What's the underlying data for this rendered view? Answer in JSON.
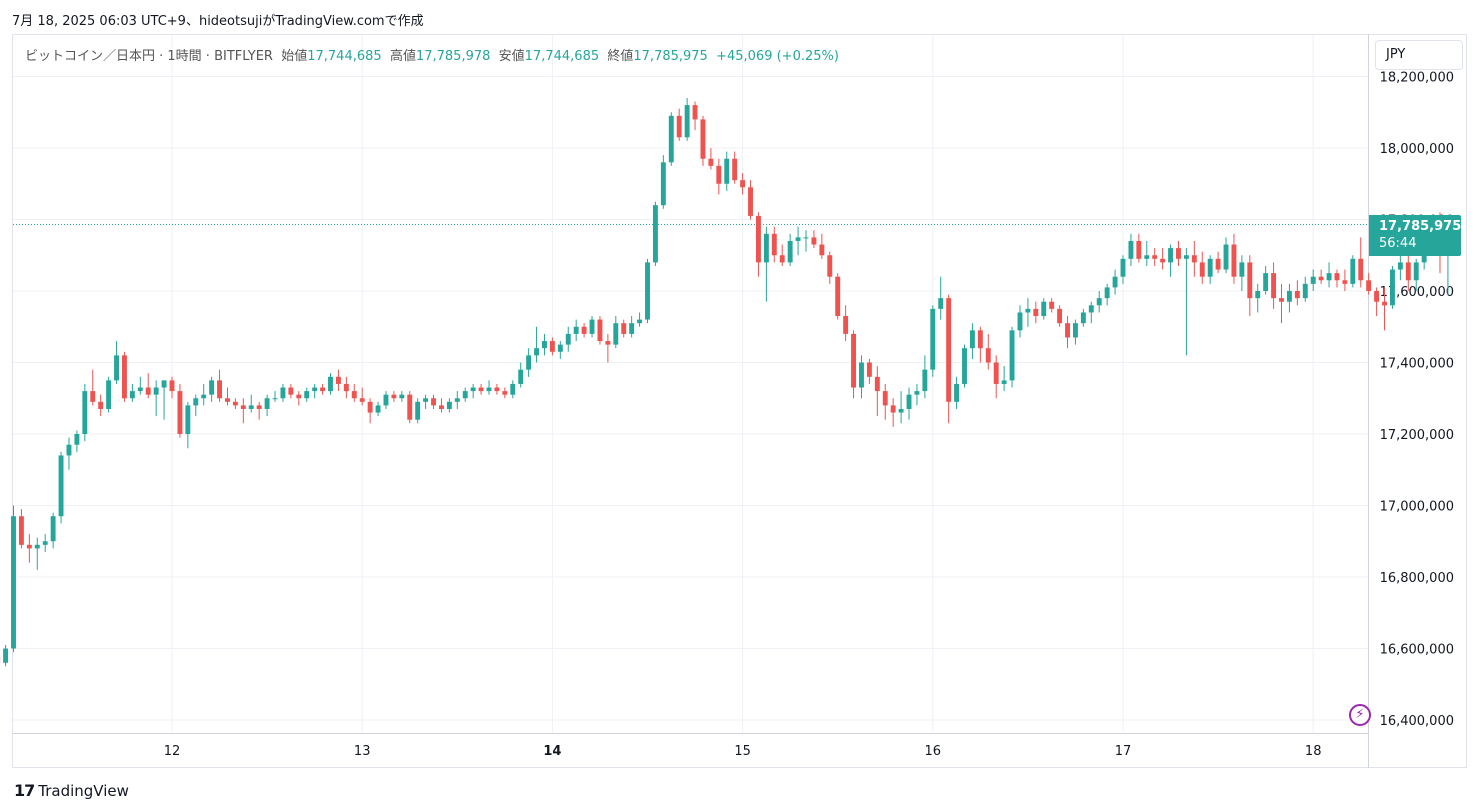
{
  "caption": "7月 18, 2025 06:03 UTC+9、hideotsujiがTradingView.comで作成",
  "legend": {
    "symbol": "ビットコイン／日本円 · 1時間 · BITFLYER",
    "open_label": "始値",
    "open": "17,744,685",
    "high_label": "高値",
    "high": "17,785,978",
    "low_label": "安値",
    "low": "17,744,685",
    "close_label": "終値",
    "close": "17,785,975",
    "change": "+45,069 (+0.25%)"
  },
  "currency": "JPY",
  "last_price": {
    "price": "17,785,975",
    "countdown": "56:44"
  },
  "brand": "TradingView",
  "colors": {
    "up": "#26a69a",
    "down": "#ef5350",
    "grid": "#eef1f5",
    "axis_text": "#131722"
  },
  "icons": {
    "alert": "bolt-icon",
    "logo": "tradingview-logo-icon"
  },
  "chart_data": {
    "type": "candlestick",
    "x_tick_labels": [
      "12",
      "13",
      "14",
      "15",
      "16",
      "17",
      "18"
    ],
    "x_bold_ticks": [
      "14"
    ],
    "y_ticks": [
      16400000,
      16600000,
      16800000,
      17000000,
      17200000,
      17400000,
      17600000,
      17800000,
      18000000,
      18200000
    ],
    "y_tick_labels": [
      "16,400,000",
      "16,600,000",
      "16,800,000",
      "17,000,000",
      "17,200,000",
      "17,400,000",
      "17,600,000",
      "17,800,000",
      "18,000,000",
      "18,200,000"
    ],
    "ylim": [
      16390000,
      18230000
    ],
    "last_close": 17785975,
    "candles_per_day": 24,
    "first_candle_offset_before_day12": 22,
    "candles": [
      [
        16580000,
        16610000,
        16530000,
        16560000
      ],
      [
        16560000,
        16610000,
        16550000,
        16600000
      ],
      [
        16600000,
        17000000,
        16590000,
        16970000
      ],
      [
        16970000,
        16990000,
        16880000,
        16890000
      ],
      [
        16890000,
        16920000,
        16840000,
        16880000
      ],
      [
        16880000,
        16910000,
        16820000,
        16890000
      ],
      [
        16890000,
        16920000,
        16870000,
        16900000
      ],
      [
        16900000,
        16980000,
        16880000,
        16970000
      ],
      [
        16970000,
        17150000,
        16950000,
        17140000
      ],
      [
        17140000,
        17190000,
        17100000,
        17170000
      ],
      [
        17170000,
        17210000,
        17150000,
        17200000
      ],
      [
        17200000,
        17340000,
        17180000,
        17320000
      ],
      [
        17320000,
        17380000,
        17280000,
        17290000
      ],
      [
        17290000,
        17310000,
        17250000,
        17270000
      ],
      [
        17270000,
        17360000,
        17260000,
        17350000
      ],
      [
        17350000,
        17460000,
        17340000,
        17420000
      ],
      [
        17420000,
        17430000,
        17290000,
        17300000
      ],
      [
        17300000,
        17340000,
        17290000,
        17320000
      ],
      [
        17320000,
        17360000,
        17310000,
        17330000
      ],
      [
        17330000,
        17370000,
        17300000,
        17310000
      ],
      [
        17310000,
        17350000,
        17250000,
        17330000
      ],
      [
        17330000,
        17350000,
        17240000,
        17350000
      ],
      [
        17350000,
        17360000,
        17300000,
        17320000
      ],
      [
        17320000,
        17340000,
        17190000,
        17200000
      ],
      [
        17200000,
        17290000,
        17160000,
        17280000
      ],
      [
        17280000,
        17310000,
        17250000,
        17300000
      ],
      [
        17300000,
        17340000,
        17280000,
        17310000
      ],
      [
        17310000,
        17360000,
        17290000,
        17350000
      ],
      [
        17350000,
        17380000,
        17290000,
        17300000
      ],
      [
        17300000,
        17330000,
        17280000,
        17290000
      ],
      [
        17290000,
        17300000,
        17270000,
        17280000
      ],
      [
        17280000,
        17300000,
        17230000,
        17270000
      ],
      [
        17270000,
        17310000,
        17260000,
        17280000
      ],
      [
        17280000,
        17290000,
        17240000,
        17270000
      ],
      [
        17270000,
        17310000,
        17250000,
        17300000
      ],
      [
        17300000,
        17320000,
        17290000,
        17300000
      ],
      [
        17300000,
        17340000,
        17290000,
        17330000
      ],
      [
        17330000,
        17340000,
        17300000,
        17310000
      ],
      [
        17310000,
        17320000,
        17280000,
        17300000
      ],
      [
        17300000,
        17330000,
        17290000,
        17320000
      ],
      [
        17320000,
        17340000,
        17300000,
        17330000
      ],
      [
        17330000,
        17340000,
        17310000,
        17320000
      ],
      [
        17320000,
        17370000,
        17310000,
        17360000
      ],
      [
        17360000,
        17380000,
        17320000,
        17340000
      ],
      [
        17340000,
        17360000,
        17300000,
        17320000
      ],
      [
        17320000,
        17340000,
        17290000,
        17300000
      ],
      [
        17300000,
        17330000,
        17280000,
        17290000
      ],
      [
        17290000,
        17300000,
        17230000,
        17260000
      ],
      [
        17260000,
        17290000,
        17250000,
        17280000
      ],
      [
        17280000,
        17320000,
        17270000,
        17310000
      ],
      [
        17310000,
        17320000,
        17290000,
        17300000
      ],
      [
        17300000,
        17320000,
        17290000,
        17310000
      ],
      [
        17310000,
        17320000,
        17230000,
        17240000
      ],
      [
        17240000,
        17300000,
        17230000,
        17290000
      ],
      [
        17290000,
        17310000,
        17270000,
        17300000
      ],
      [
        17300000,
        17310000,
        17270000,
        17280000
      ],
      [
        17280000,
        17300000,
        17260000,
        17270000
      ],
      [
        17270000,
        17300000,
        17260000,
        17290000
      ],
      [
        17290000,
        17320000,
        17270000,
        17300000
      ],
      [
        17300000,
        17330000,
        17290000,
        17320000
      ],
      [
        17320000,
        17340000,
        17300000,
        17330000
      ],
      [
        17330000,
        17340000,
        17310000,
        17320000
      ],
      [
        17320000,
        17350000,
        17310000,
        17330000
      ],
      [
        17330000,
        17340000,
        17310000,
        17320000
      ],
      [
        17320000,
        17330000,
        17300000,
        17310000
      ],
      [
        17310000,
        17350000,
        17300000,
        17340000
      ],
      [
        17340000,
        17400000,
        17330000,
        17380000
      ],
      [
        17380000,
        17440000,
        17360000,
        17420000
      ],
      [
        17420000,
        17500000,
        17400000,
        17440000
      ],
      [
        17440000,
        17480000,
        17420000,
        17460000
      ],
      [
        17460000,
        17470000,
        17420000,
        17430000
      ],
      [
        17430000,
        17460000,
        17410000,
        17450000
      ],
      [
        17450000,
        17500000,
        17430000,
        17480000
      ],
      [
        17480000,
        17520000,
        17460000,
        17500000
      ],
      [
        17500000,
        17510000,
        17470000,
        17480000
      ],
      [
        17480000,
        17530000,
        17470000,
        17520000
      ],
      [
        17520000,
        17530000,
        17450000,
        17460000
      ],
      [
        17460000,
        17480000,
        17400000,
        17450000
      ],
      [
        17450000,
        17530000,
        17440000,
        17510000
      ],
      [
        17510000,
        17520000,
        17470000,
        17480000
      ],
      [
        17480000,
        17530000,
        17470000,
        17510000
      ],
      [
        17510000,
        17540000,
        17500000,
        17520000
      ],
      [
        17520000,
        17690000,
        17510000,
        17680000
      ],
      [
        17680000,
        17850000,
        17670000,
        17840000
      ],
      [
        17840000,
        17980000,
        17830000,
        17960000
      ],
      [
        17960000,
        18100000,
        17950000,
        18090000
      ],
      [
        18090000,
        18110000,
        18020000,
        18030000
      ],
      [
        18030000,
        18140000,
        18020000,
        18120000
      ],
      [
        18120000,
        18130000,
        18050000,
        18080000
      ],
      [
        18080000,
        18090000,
        17950000,
        17970000
      ],
      [
        17970000,
        18000000,
        17940000,
        17950000
      ],
      [
        17950000,
        17970000,
        17870000,
        17900000
      ],
      [
        17900000,
        17990000,
        17880000,
        17970000
      ],
      [
        17970000,
        17990000,
        17900000,
        17910000
      ],
      [
        17910000,
        17930000,
        17870000,
        17890000
      ],
      [
        17890000,
        17910000,
        17800000,
        17810000
      ],
      [
        17810000,
        17820000,
        17640000,
        17680000
      ],
      [
        17680000,
        17780000,
        17570000,
        17760000
      ],
      [
        17760000,
        17780000,
        17680000,
        17700000
      ],
      [
        17700000,
        17730000,
        17670000,
        17680000
      ],
      [
        17680000,
        17760000,
        17670000,
        17740000
      ],
      [
        17740000,
        17780000,
        17700000,
        17750000
      ],
      [
        17750000,
        17770000,
        17710000,
        17750000
      ],
      [
        17750000,
        17770000,
        17720000,
        17730000
      ],
      [
        17730000,
        17760000,
        17690000,
        17700000
      ],
      [
        17700000,
        17710000,
        17620000,
        17640000
      ],
      [
        17640000,
        17650000,
        17520000,
        17530000
      ],
      [
        17530000,
        17560000,
        17460000,
        17480000
      ],
      [
        17480000,
        17490000,
        17300000,
        17330000
      ],
      [
        17330000,
        17420000,
        17300000,
        17400000
      ],
      [
        17400000,
        17410000,
        17340000,
        17360000
      ],
      [
        17360000,
        17390000,
        17250000,
        17320000
      ],
      [
        17320000,
        17340000,
        17240000,
        17280000
      ],
      [
        17280000,
        17300000,
        17220000,
        17260000
      ],
      [
        17260000,
        17320000,
        17230000,
        17270000
      ],
      [
        17270000,
        17330000,
        17240000,
        17310000
      ],
      [
        17310000,
        17340000,
        17280000,
        17320000
      ],
      [
        17320000,
        17420000,
        17300000,
        17380000
      ],
      [
        17380000,
        17560000,
        17360000,
        17550000
      ],
      [
        17550000,
        17640000,
        17520000,
        17580000
      ],
      [
        17580000,
        17590000,
        17230000,
        17290000
      ],
      [
        17290000,
        17360000,
        17270000,
        17340000
      ],
      [
        17340000,
        17450000,
        17330000,
        17440000
      ],
      [
        17440000,
        17510000,
        17410000,
        17490000
      ],
      [
        17490000,
        17500000,
        17400000,
        17440000
      ],
      [
        17440000,
        17480000,
        17380000,
        17400000
      ],
      [
        17400000,
        17420000,
        17300000,
        17340000
      ],
      [
        17340000,
        17390000,
        17320000,
        17350000
      ],
      [
        17350000,
        17500000,
        17330000,
        17490000
      ],
      [
        17490000,
        17560000,
        17470000,
        17540000
      ],
      [
        17540000,
        17580000,
        17500000,
        17550000
      ],
      [
        17550000,
        17570000,
        17510000,
        17530000
      ],
      [
        17530000,
        17580000,
        17520000,
        17570000
      ],
      [
        17570000,
        17580000,
        17540000,
        17550000
      ],
      [
        17550000,
        17560000,
        17500000,
        17510000
      ],
      [
        17510000,
        17530000,
        17440000,
        17470000
      ],
      [
        17470000,
        17520000,
        17450000,
        17510000
      ],
      [
        17510000,
        17550000,
        17500000,
        17540000
      ],
      [
        17540000,
        17570000,
        17510000,
        17560000
      ],
      [
        17560000,
        17600000,
        17540000,
        17580000
      ],
      [
        17580000,
        17620000,
        17560000,
        17610000
      ],
      [
        17610000,
        17660000,
        17590000,
        17640000
      ],
      [
        17640000,
        17700000,
        17620000,
        17690000
      ],
      [
        17690000,
        17760000,
        17670000,
        17740000
      ],
      [
        17740000,
        17760000,
        17680000,
        17690000
      ],
      [
        17690000,
        17740000,
        17670000,
        17700000
      ],
      [
        17700000,
        17720000,
        17670000,
        17690000
      ],
      [
        17690000,
        17720000,
        17660000,
        17680000
      ],
      [
        17680000,
        17730000,
        17640000,
        17720000
      ],
      [
        17720000,
        17740000,
        17670000,
        17690000
      ],
      [
        17690000,
        17720000,
        17420000,
        17700000
      ],
      [
        17700000,
        17740000,
        17640000,
        17680000
      ],
      [
        17680000,
        17710000,
        17620000,
        17640000
      ],
      [
        17640000,
        17700000,
        17620000,
        17690000
      ],
      [
        17690000,
        17710000,
        17650000,
        17660000
      ],
      [
        17660000,
        17750000,
        17650000,
        17730000
      ],
      [
        17730000,
        17760000,
        17620000,
        17640000
      ],
      [
        17640000,
        17700000,
        17600000,
        17680000
      ],
      [
        17680000,
        17700000,
        17530000,
        17580000
      ],
      [
        17580000,
        17620000,
        17540000,
        17600000
      ],
      [
        17600000,
        17670000,
        17590000,
        17650000
      ],
      [
        17650000,
        17680000,
        17550000,
        17580000
      ],
      [
        17580000,
        17620000,
        17510000,
        17570000
      ],
      [
        17570000,
        17620000,
        17540000,
        17600000
      ],
      [
        17600000,
        17630000,
        17560000,
        17580000
      ],
      [
        17580000,
        17640000,
        17570000,
        17620000
      ],
      [
        17620000,
        17660000,
        17600000,
        17640000
      ],
      [
        17640000,
        17660000,
        17620000,
        17630000
      ],
      [
        17630000,
        17680000,
        17610000,
        17650000
      ],
      [
        17650000,
        17660000,
        17610000,
        17630000
      ],
      [
        17630000,
        17660000,
        17600000,
        17620000
      ],
      [
        17620000,
        17700000,
        17610000,
        17690000
      ],
      [
        17690000,
        17750000,
        17610000,
        17630000
      ],
      [
        17630000,
        17650000,
        17590000,
        17600000
      ],
      [
        17600000,
        17610000,
        17530000,
        17570000
      ],
      [
        17570000,
        17610000,
        17490000,
        17560000
      ],
      [
        17560000,
        17670000,
        17550000,
        17660000
      ],
      [
        17660000,
        17700000,
        17630000,
        17680000
      ],
      [
        17680000,
        17710000,
        17600000,
        17630000
      ],
      [
        17630000,
        17690000,
        17600000,
        17680000
      ],
      [
        17680000,
        17770000,
        17660000,
        17760000
      ],
      [
        17760000,
        17810000,
        17740000,
        17810000
      ],
      [
        17810000,
        17820000,
        17650000,
        17700000
      ],
      [
        17700000,
        17780000,
        17590000,
        17740000
      ],
      [
        17744685,
        17785978,
        17744685,
        17785975
      ]
    ]
  }
}
